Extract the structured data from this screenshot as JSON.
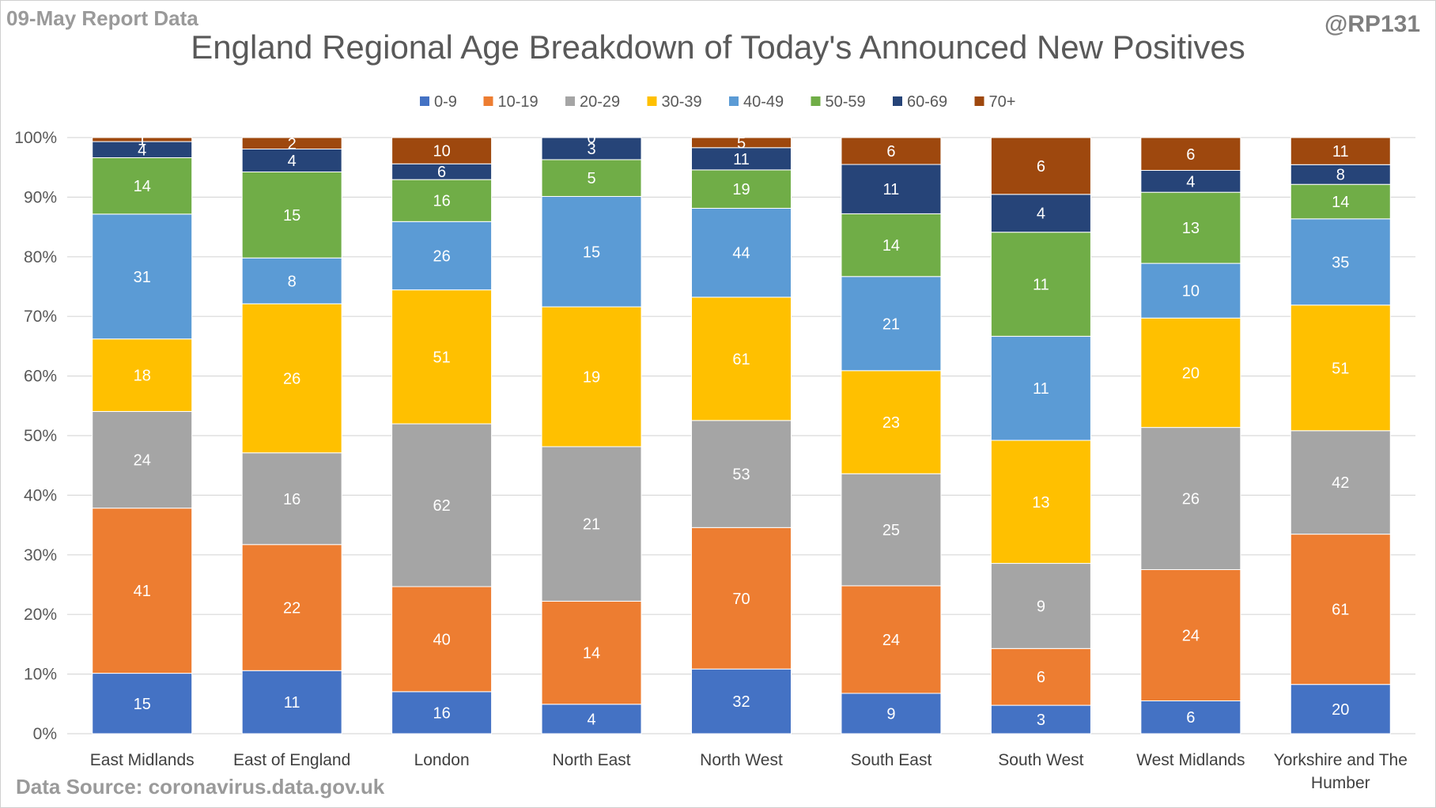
{
  "header": {
    "report_label": "09-May Report Data",
    "handle": "@RP131",
    "source": "Data Source: coronavirus.data.gov.uk"
  },
  "chart_data": {
    "type": "bar",
    "stacked": "percent",
    "title": "England Regional Age Breakdown of Today's Announced New Positives",
    "categories": [
      "East Midlands",
      "East of England",
      "London",
      "North East",
      "North West",
      "South East",
      "South West",
      "West Midlands",
      "Yorkshire and The Humber"
    ],
    "series": [
      {
        "name": "0-9",
        "color": "#4472C4",
        "values": [
          15,
          11,
          16,
          4,
          32,
          9,
          3,
          6,
          20
        ]
      },
      {
        "name": "10-19",
        "color": "#ED7D31",
        "values": [
          41,
          22,
          40,
          14,
          70,
          24,
          6,
          24,
          61
        ]
      },
      {
        "name": "20-29",
        "color": "#A5A5A5",
        "values": [
          24,
          16,
          62,
          21,
          53,
          25,
          9,
          26,
          42
        ]
      },
      {
        "name": "30-39",
        "color": "#FFC000",
        "values": [
          18,
          26,
          51,
          19,
          61,
          23,
          13,
          20,
          51
        ]
      },
      {
        "name": "40-49",
        "color": "#5B9BD5",
        "values": [
          31,
          8,
          26,
          15,
          44,
          21,
          11,
          10,
          35
        ]
      },
      {
        "name": "50-59",
        "color": "#70AD47",
        "values": [
          14,
          15,
          16,
          5,
          19,
          14,
          11,
          13,
          14
        ]
      },
      {
        "name": "60-69",
        "color": "#264478",
        "values": [
          4,
          4,
          6,
          3,
          11,
          11,
          4,
          4,
          8
        ]
      },
      {
        "name": "70+",
        "color": "#9E480E",
        "values": [
          1,
          2,
          10,
          0,
          5,
          6,
          6,
          6,
          11
        ]
      }
    ],
    "yticks": [
      "0%",
      "10%",
      "20%",
      "30%",
      "40%",
      "50%",
      "60%",
      "70%",
      "80%",
      "90%",
      "100%"
    ],
    "ylim": [
      0,
      100
    ],
    "grid": true,
    "legend": "top"
  }
}
